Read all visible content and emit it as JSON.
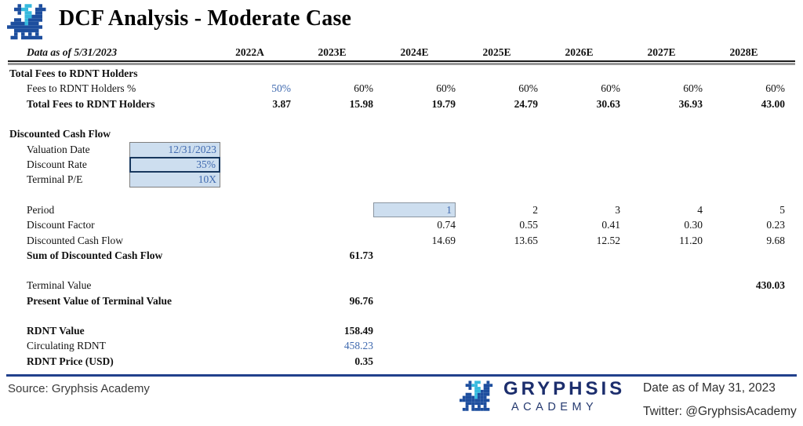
{
  "page": {
    "title": "DCF Analysis - Moderate Case",
    "data_as_of": "Data as of 5/31/2023"
  },
  "colors": {
    "accent_blue_text": "#3f69af",
    "input_cell_fill": "#cddeef",
    "input_cell_border": "#7f7f7f",
    "emphasis_border": "#17375e",
    "footer_rule_navy": "#21408c",
    "brand_navy": "#1c2e6d",
    "logo_navy": "#1d4e9e",
    "logo_cyan": "#35b9dd"
  },
  "table": {
    "columns": [
      "2022A",
      "2023E",
      "2024E",
      "2025E",
      "2026E",
      "2027E",
      "2028E"
    ],
    "rows": [
      {
        "label": "Total Fees to RDNT Holders",
        "style": "section",
        "cells": [
          null,
          null,
          null,
          null,
          null,
          null,
          null
        ]
      },
      {
        "label": "Fees to RDNT Holders %",
        "style": "normal",
        "cells": [
          {
            "t": "50%",
            "cls": "blue"
          },
          {
            "t": "60%"
          },
          {
            "t": "60%"
          },
          {
            "t": "60%"
          },
          {
            "t": "60%"
          },
          {
            "t": "60%"
          },
          {
            "t": "60%"
          }
        ]
      },
      {
        "label": "Total Fees to RDNT Holders",
        "style": "bold",
        "cells": [
          {
            "t": "3.87",
            "cls": "bold"
          },
          {
            "t": "15.98",
            "cls": "bold"
          },
          {
            "t": "19.79",
            "cls": "bold"
          },
          {
            "t": "24.79",
            "cls": "bold"
          },
          {
            "t": "30.63",
            "cls": "bold"
          },
          {
            "t": "36.93",
            "cls": "bold"
          },
          {
            "t": "43.00",
            "cls": "bold"
          }
        ]
      },
      {
        "label": "Discounted Cash Flow",
        "style": "section",
        "gap": true,
        "cells": [
          null,
          null,
          null,
          null,
          null,
          null,
          null
        ]
      },
      {
        "label": "Valuation Date",
        "style": "normal",
        "input": {
          "value": "12/31/2023",
          "strong": false
        }
      },
      {
        "label": "Discount Rate",
        "style": "normal",
        "input": {
          "value": "35%",
          "strong": true
        }
      },
      {
        "label": "Terminal P/E",
        "style": "normal",
        "input": {
          "value": "10X",
          "strong": false
        }
      },
      {
        "label": "Period",
        "style": "normal",
        "gap": true,
        "cells": [
          null,
          null,
          {
            "t": "1",
            "cls": "box"
          },
          {
            "t": "2"
          },
          {
            "t": "3"
          },
          {
            "t": "4"
          },
          {
            "t": "5"
          }
        ]
      },
      {
        "label": "Discount Factor",
        "style": "normal",
        "cells": [
          null,
          null,
          {
            "t": "0.74"
          },
          {
            "t": "0.55"
          },
          {
            "t": "0.41"
          },
          {
            "t": "0.30"
          },
          {
            "t": "0.23"
          }
        ]
      },
      {
        "label": "Discounted Cash Flow",
        "style": "normal",
        "cells": [
          null,
          null,
          {
            "t": "14.69"
          },
          {
            "t": "13.65"
          },
          {
            "t": "12.52"
          },
          {
            "t": "11.20"
          },
          {
            "t": "9.68"
          }
        ]
      },
      {
        "label": "Sum of Discounted Cash Flow",
        "style": "bold",
        "cells": [
          null,
          {
            "t": "61.73",
            "cls": "bold"
          },
          null,
          null,
          null,
          null,
          null
        ]
      },
      {
        "label": "Terminal Value",
        "style": "normal",
        "gap": true,
        "cells": [
          null,
          null,
          null,
          null,
          null,
          null,
          {
            "t": "430.03",
            "cls": "bold"
          }
        ]
      },
      {
        "label": "Present Value of Terminal Value",
        "style": "bold",
        "cells": [
          null,
          {
            "t": "96.76",
            "cls": "bold"
          },
          null,
          null,
          null,
          null,
          null
        ]
      },
      {
        "label": "RDNT Value",
        "style": "bold",
        "gap": true,
        "cells": [
          null,
          {
            "t": "158.49",
            "cls": "bold"
          },
          null,
          null,
          null,
          null,
          null
        ]
      },
      {
        "label": "Circulating RDNT",
        "style": "normal",
        "cells": [
          null,
          {
            "t": "458.23",
            "cls": "blue"
          },
          null,
          null,
          null,
          null,
          null
        ]
      },
      {
        "label": "RDNT Price (USD)",
        "style": "bold",
        "cells": [
          null,
          {
            "t": "0.35",
            "cls": "bold"
          },
          null,
          null,
          null,
          null,
          null
        ]
      }
    ]
  },
  "footer": {
    "source": "Source: Gryphsis Academy",
    "brand_name": "GRYPHSIS",
    "brand_sub": "ACADEMY",
    "date": "Date as of May 31, 2023",
    "twitter": "Twitter: @GryphsisAcademy"
  }
}
